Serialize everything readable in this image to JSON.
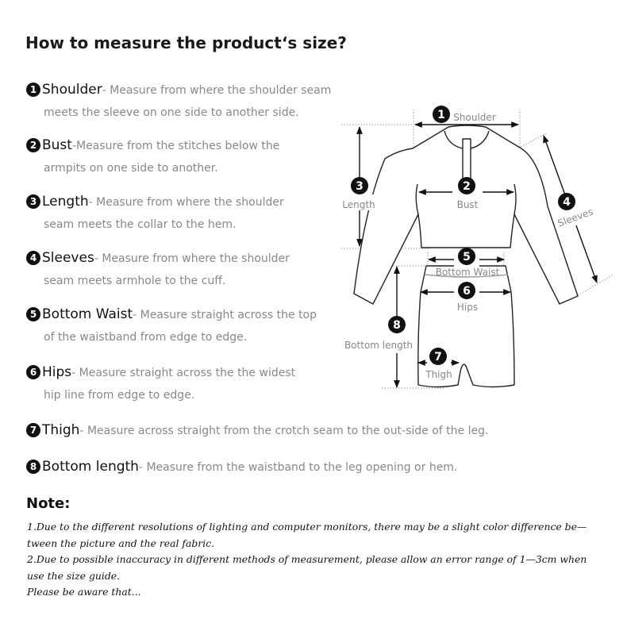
{
  "title": "How to measure the product‘s size?",
  "items": [
    {
      "num": "1",
      "label": "Shoulder",
      "desc": "- Measure from where the shoulder seam",
      "cont": "meets the sleeve on one side to another side."
    },
    {
      "num": "2",
      "label": "Bust",
      "desc": "-Measure from the stitches below the",
      "cont": "armpits on one side to another."
    },
    {
      "num": "3",
      "label": "Length",
      "desc": "- Measure from where the shoulder",
      "cont": "seam meets the collar to the hem."
    },
    {
      "num": "4",
      "label": "Sleeves",
      "desc": "- Measure from where the shoulder",
      "cont": "seam meets armhole to the cuff."
    },
    {
      "num": "5",
      "label": "Bottom Waist",
      "desc": "- Measure straight across the top",
      "cont": "of the waistband from edge to edge."
    },
    {
      "num": "6",
      "label": "Hips",
      "desc": "- Measure straight across the the widest",
      "cont": "hip line from edge to edge."
    },
    {
      "num": "7",
      "label": "Thigh",
      "desc": "- Measure across straight from the crotch seam to the out-side of the leg."
    },
    {
      "num": "8",
      "label": "Bottom length",
      "desc": "- Measure from the waistband to the leg opening or hem."
    }
  ],
  "diagram": {
    "shoulder": "Shoulder",
    "bust": "Bust",
    "length": "Length",
    "sleeves": "Sleeves",
    "bottom_waist": "Bottom Waist",
    "hips": "Hips",
    "bottom_length": "Bottom length",
    "thigh": "Thigh",
    "n1": "1",
    "n2": "2",
    "n3": "3",
    "n4": "4",
    "n5": "5",
    "n6": "6",
    "n7": "7",
    "n8": "8"
  },
  "note": {
    "title": "Note:",
    "lines": [
      "1.Due to the different resolutions of lighting and computer monitors, there may be a slight color difference be—",
      "tween the picture and the real fabric.",
      "2.Due to possible inaccuracy in different methods of measurement, please allow an error range of 1—3cm when",
      "use the size guide.",
      "Please be aware that..."
    ]
  }
}
